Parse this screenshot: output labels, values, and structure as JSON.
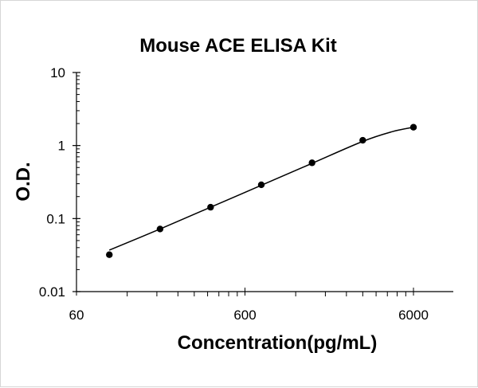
{
  "chart_data": {
    "type": "scatter",
    "title": "Mouse ACE ELISA Kit",
    "xlabel": "Concentration(pg/mL)",
    "ylabel": "O.D.",
    "x_scale": "log",
    "y_scale": "log",
    "xlim": [
      60,
      6000
    ],
    "ylim": [
      0.01,
      10
    ],
    "x_ticks": [
      "60",
      "600",
      "6000"
    ],
    "y_ticks": [
      "0.01",
      "0.1",
      "1",
      "10"
    ],
    "grid": false,
    "legend": "none",
    "series": [
      {
        "x": [
          94,
          188,
          375,
          750,
          1500,
          3000,
          6000
        ],
        "y": [
          0.032,
          0.072,
          0.143,
          0.29,
          0.58,
          1.18,
          1.78
        ]
      }
    ],
    "fit_curve": {
      "x": [
        94,
        188,
        375,
        750,
        1500,
        3000,
        4500,
        6000
      ],
      "y": [
        0.037,
        0.072,
        0.143,
        0.285,
        0.57,
        1.14,
        1.55,
        1.78
      ]
    },
    "colors": {
      "marks": "#000000",
      "axis": "#000000"
    }
  }
}
